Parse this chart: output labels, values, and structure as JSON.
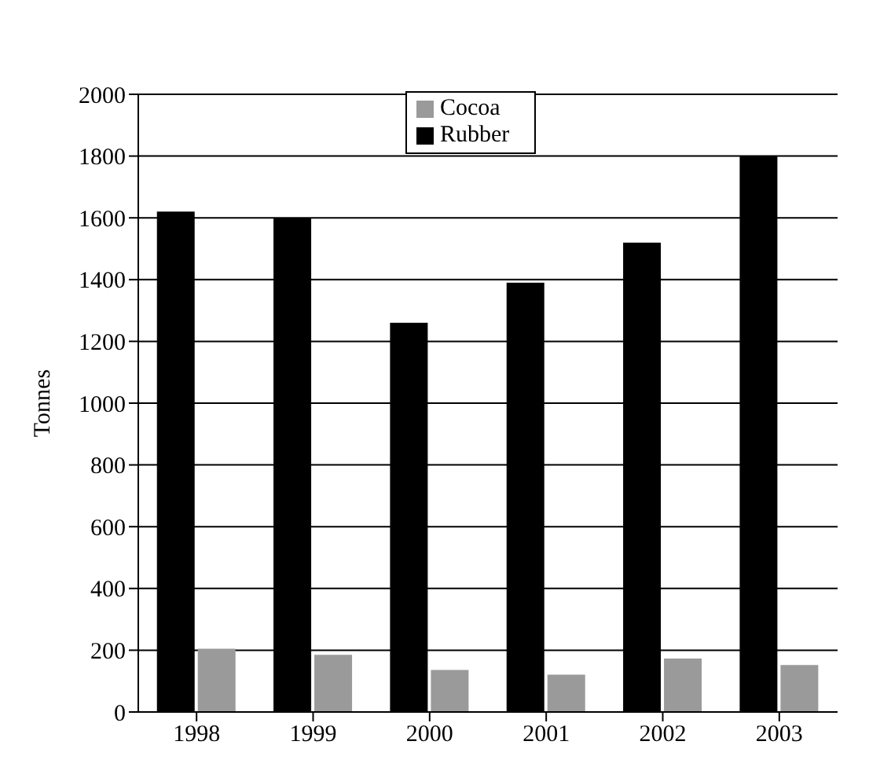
{
  "chart_data": {
    "type": "bar",
    "ylabel": "Tonnes",
    "categories": [
      "1998",
      "1999",
      "2000",
      "2001",
      "2002",
      "2003"
    ],
    "series": [
      {
        "name": "Rubber",
        "color": "#000000",
        "values": [
          1620,
          1600,
          1260,
          1390,
          1520,
          1800
        ]
      },
      {
        "name": "Cocoa",
        "color": "#9a9a9a",
        "values": [
          205,
          185,
          136,
          121,
          173,
          152
        ]
      }
    ],
    "ylim": [
      0,
      2000
    ],
    "yticks": [
      0,
      200,
      400,
      600,
      800,
      1000,
      1200,
      1400,
      1600,
      1800,
      2000
    ],
    "grid": "y",
    "legend": "top"
  }
}
